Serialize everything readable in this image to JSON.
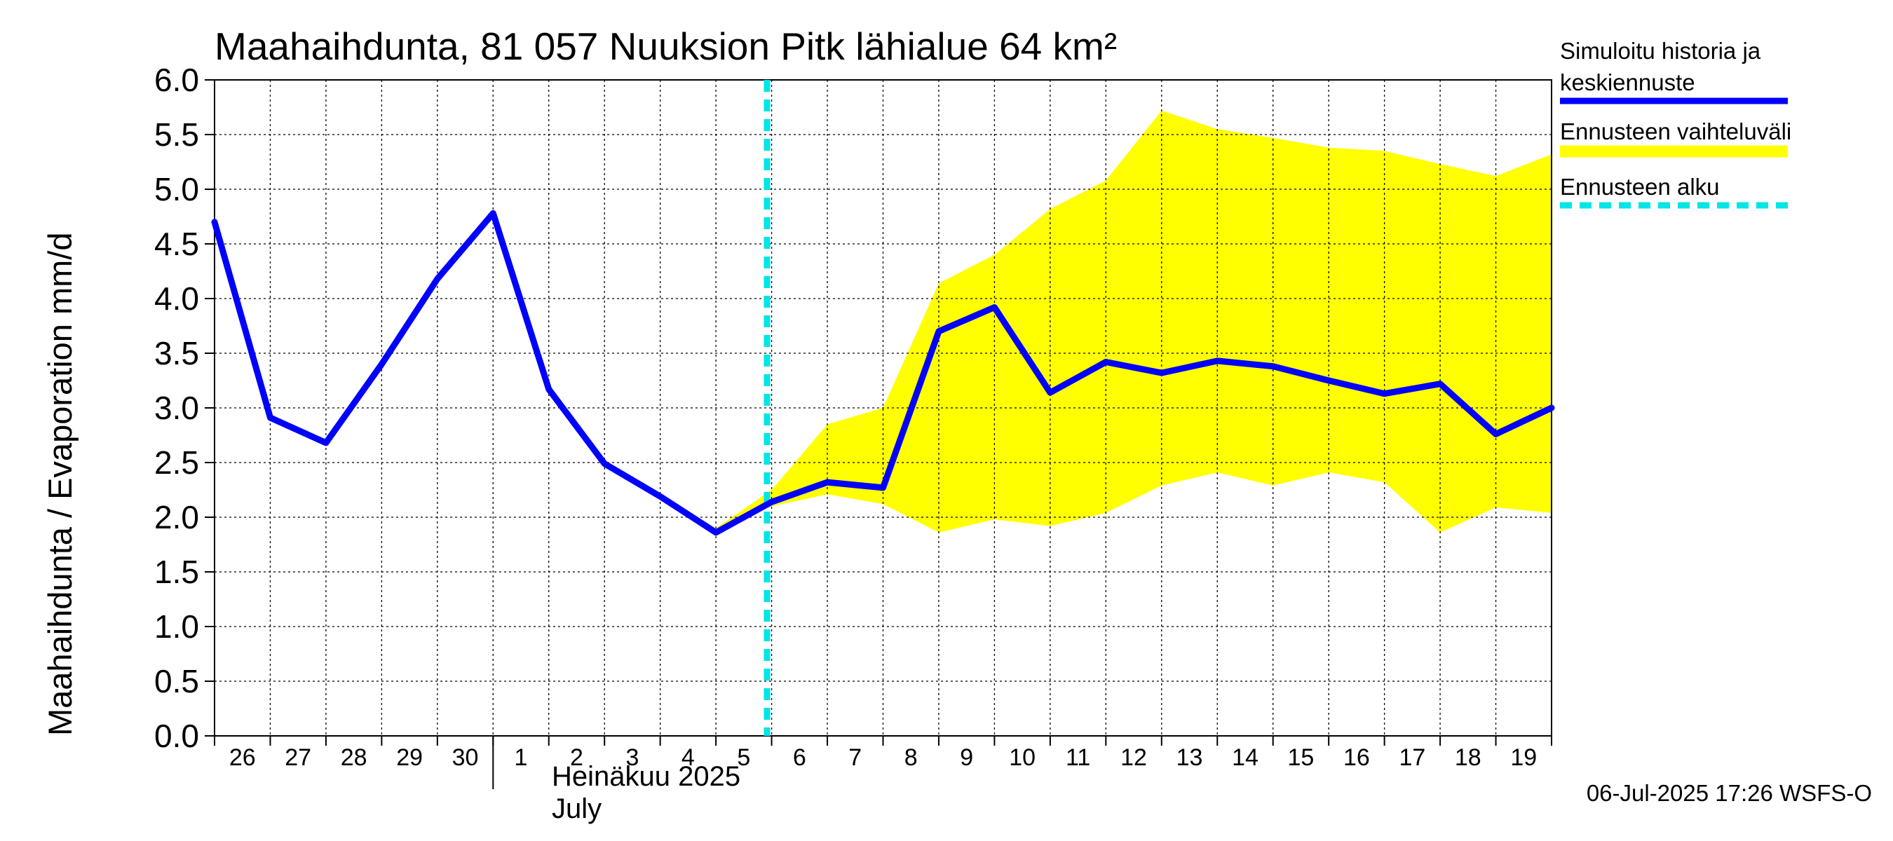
{
  "chart_data": {
    "type": "line",
    "title": "Maahaihdunta, 81 057 Nuuksion Pitk lähialue 64 km²",
    "ylabel": "Maahaihdunta / Evaporation   mm/d",
    "ylim": [
      0,
      6
    ],
    "yticks": [
      "0.0",
      "0.5",
      "1.0",
      "1.5",
      "2.0",
      "2.5",
      "3.0",
      "3.5",
      "4.0",
      "4.5",
      "5.0",
      "5.5",
      "6.0"
    ],
    "x_start": "2025-06-26",
    "x_end": "2025-07-20",
    "x_tick_labels": [
      "26",
      "27",
      "28",
      "29",
      "30",
      "1",
      "2",
      "3",
      "4",
      "5",
      "6",
      "7",
      "8",
      "9",
      "10",
      "11",
      "12",
      "13",
      "14",
      "15",
      "16",
      "17",
      "18",
      "19"
    ],
    "month_label_fi": "Heinäkuu  2025",
    "month_label_en": "July",
    "forecast_start": "2025-07-05T22:00",
    "grid": true,
    "legend_position": "right",
    "series": [
      {
        "name": "Simuloitu historia ja keskiennuste",
        "color": "#0000ff",
        "x": [
          "2025-06-26",
          "2025-06-27",
          "2025-06-28",
          "2025-06-29",
          "2025-06-30",
          "2025-07-01",
          "2025-07-02",
          "2025-07-03",
          "2025-07-04",
          "2025-07-05",
          "2025-07-06",
          "2025-07-07",
          "2025-07-08",
          "2025-07-09",
          "2025-07-10",
          "2025-07-11",
          "2025-07-12",
          "2025-07-13",
          "2025-07-14",
          "2025-07-15",
          "2025-07-16",
          "2025-07-17",
          "2025-07-18",
          "2025-07-19",
          "2025-07-20"
        ],
        "y": [
          4.7,
          2.91,
          2.68,
          3.4,
          4.18,
          4.78,
          3.17,
          2.49,
          2.19,
          1.86,
          2.14,
          2.32,
          2.27,
          3.7,
          3.92,
          3.14,
          3.42,
          3.32,
          3.43,
          3.38,
          3.25,
          3.13,
          3.22,
          2.76,
          3.0
        ]
      },
      {
        "name": "Ennusteen vaihteluväli",
        "color": "#ffff00",
        "type": "band",
        "x": [
          "2025-07-05",
          "2025-07-06",
          "2025-07-07",
          "2025-07-08",
          "2025-07-09",
          "2025-07-10",
          "2025-07-11",
          "2025-07-12",
          "2025-07-13",
          "2025-07-14",
          "2025-07-15",
          "2025-07-16",
          "2025-07-17",
          "2025-07-18",
          "2025-07-19",
          "2025-07-20"
        ],
        "upper": [
          1.9,
          2.25,
          2.85,
          3.0,
          4.14,
          4.4,
          4.82,
          5.08,
          5.72,
          5.55,
          5.47,
          5.38,
          5.35,
          5.23,
          5.12,
          5.32
        ],
        "lower": [
          1.86,
          2.1,
          2.21,
          2.12,
          1.86,
          1.98,
          1.92,
          2.04,
          2.29,
          2.41,
          2.29,
          2.41,
          2.32,
          1.86,
          2.09,
          2.04
        ]
      },
      {
        "name": "Ennusteen alku",
        "color": "#00e5e5",
        "type": "vline"
      }
    ]
  },
  "footer": "06-Jul-2025 17:26 WSFS-O"
}
